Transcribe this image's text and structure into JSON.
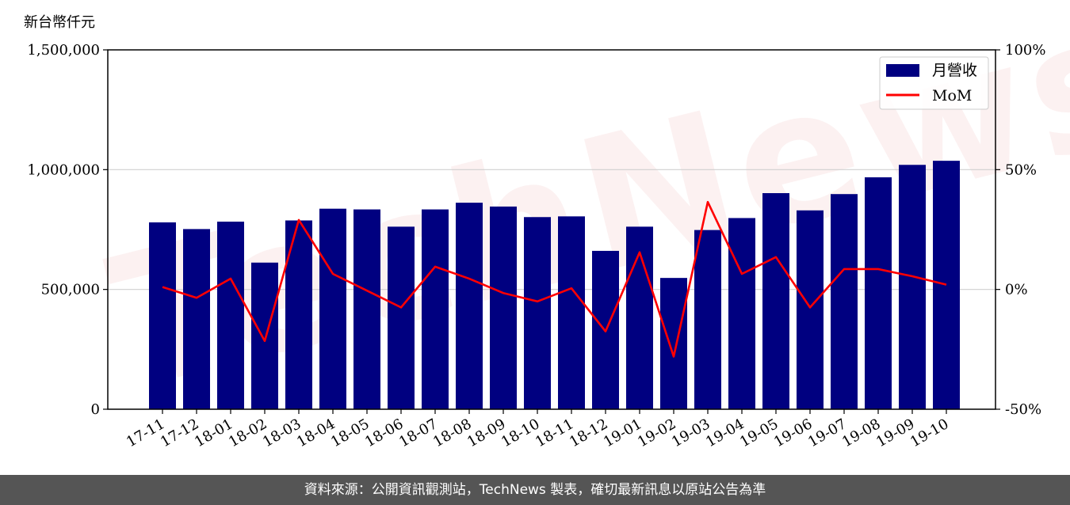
{
  "unit_label": "新台幣仟元",
  "watermark": "TechNews",
  "footer": "資料來源：公開資訊觀測站，TechNews 製表，確切最新訊息以原站公告為準",
  "chart_data": {
    "type": "bar",
    "categories": [
      "17-11",
      "17-12",
      "18-01",
      "18-02",
      "18-03",
      "18-04",
      "18-05",
      "18-06",
      "18-07",
      "18-08",
      "18-09",
      "18-10",
      "18-11",
      "18-12",
      "19-01",
      "19-02",
      "19-03",
      "19-04",
      "19-05",
      "19-06",
      "19-07",
      "19-08",
      "19-09",
      "19-10"
    ],
    "series": [
      {
        "name": "月營收",
        "axis": "left",
        "type": "bar",
        "color": "#000080",
        "values": [
          780000,
          752000,
          783000,
          612000,
          788000,
          837000,
          834000,
          762000,
          834000,
          862000,
          846000,
          802000,
          805000,
          661000,
          762000,
          548000,
          748000,
          798000,
          902000,
          830000,
          898000,
          968000,
          1020000,
          1037000
        ]
      },
      {
        "name": "MoM",
        "axis": "right",
        "type": "line",
        "color": "#ff0000",
        "values": [
          1,
          -3.5,
          4.5,
          -21.5,
          29,
          6.5,
          -0.5,
          -7.5,
          9.5,
          4.5,
          -1.5,
          -5,
          0.5,
          -17.5,
          15.5,
          -28,
          36.5,
          6.5,
          13.5,
          -7.5,
          8.5,
          8.5,
          5.5,
          2
        ]
      }
    ],
    "ylim": [
      0,
      1500000
    ],
    "y2lim": [
      -50,
      100
    ],
    "yticks": [
      "0",
      "500,000",
      "1,000,000",
      "1,500,000"
    ],
    "y2ticks": [
      "-50%",
      "0%",
      "50%",
      "100%"
    ],
    "grid": "horizontal",
    "legend_position": "top-right"
  }
}
